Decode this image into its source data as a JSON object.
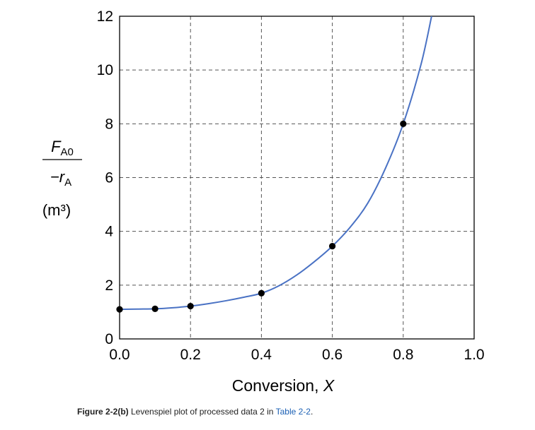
{
  "chart_data": {
    "type": "scatter",
    "title": "",
    "xlabel": "Conversion, X",
    "ylabel": {
      "numerator": "F",
      "numerator_sub": "A0",
      "denominator": "−r",
      "denominator_sub": "A",
      "units": "(m³)"
    },
    "xlim": [
      0,
      1.0
    ],
    "ylim": [
      0,
      12
    ],
    "x_ticks": [
      "0.0",
      "0.2",
      "0.4",
      "0.6",
      "0.8",
      "1.0"
    ],
    "y_ticks": [
      "0",
      "2",
      "4",
      "6",
      "8",
      "10",
      "12"
    ],
    "grid": true,
    "series": [
      {
        "kind": "points",
        "x": [
          0.0,
          0.1,
          0.2,
          0.4,
          0.6,
          0.8
        ],
        "y": [
          1.1,
          1.12,
          1.22,
          1.7,
          3.45,
          8.0
        ]
      },
      {
        "kind": "fit-curve",
        "color": "#4a72c4",
        "x": [
          0.0,
          0.05,
          0.1,
          0.15,
          0.2,
          0.25,
          0.3,
          0.35,
          0.4,
          0.45,
          0.5,
          0.55,
          0.6,
          0.65,
          0.7,
          0.75,
          0.8,
          0.85,
          0.88
        ],
        "y": [
          1.1,
          1.11,
          1.12,
          1.16,
          1.22,
          1.31,
          1.42,
          1.55,
          1.7,
          1.98,
          2.38,
          2.88,
          3.45,
          4.15,
          5.05,
          6.35,
          8.0,
          10.2,
          12.0
        ]
      }
    ]
  },
  "caption": {
    "label": "Figure 2-2(b)",
    "text": " Levenspiel plot of processed data 2 in ",
    "link": "Table 2-2",
    "end": "."
  }
}
